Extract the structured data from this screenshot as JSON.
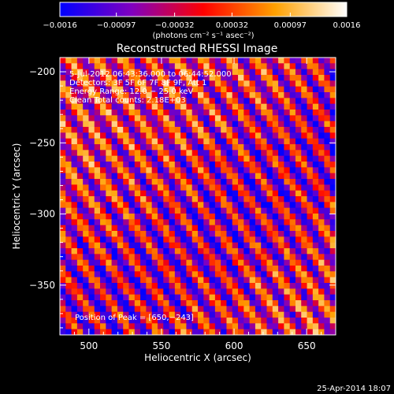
{
  "chart_data": {
    "type": "heatmap",
    "title": "Reconstructed RHESSI Image",
    "xlabel": "Heliocentric X (arcsec)",
    "ylabel": "Heliocentric Y (arcsec)",
    "xlim": [
      480,
      670
    ],
    "ylim": [
      -385,
      -190
    ],
    "x_ticks": [
      500,
      550,
      600,
      650
    ],
    "y_ticks": [
      -200,
      -250,
      -300,
      -350
    ],
    "x_tick_labels": [
      "500",
      "550",
      "600",
      "650"
    ],
    "y_tick_labels": [
      "−200",
      "−250",
      "−300",
      "−350"
    ],
    "colorbar": {
      "range": [
        -0.0016,
        0.0016
      ],
      "ticks": [
        -0.0016,
        -0.00097,
        -0.00032,
        0.00032,
        0.00097,
        0.0016
      ],
      "tick_labels": [
        "−0.0016",
        "−0.00097",
        "−0.00032",
        "0.00032",
        "0.00097",
        "0.0016"
      ],
      "units_label": "(photons cm⁻² s⁻¹ asec⁻²)",
      "colors": [
        "#0000ff",
        "#a000a0",
        "#ff0000",
        "#ffa000",
        "#ffffff"
      ]
    },
    "annotations": [
      "5-Jul-2012 06:43:36.000 to 06:44:52.000",
      "Detectors: 3F 5F 6F 7F 8F 9F, Att 1",
      "Energy Range: 12.0 − 25.0 keV",
      "Clean    Total counts: 2.18E+03"
    ],
    "peak_label": "Position of Peak = [650,−243]",
    "peak": [
      650,
      -243
    ],
    "grid_cells": [
      48,
      48
    ],
    "pattern": {
      "type": "diagonal stripes",
      "period_arcsec": 15,
      "angle_deg": 35,
      "amplitude": 0.0011,
      "blue_band_center": [
        600,
        -300
      ]
    }
  },
  "footer": {
    "date": "25-Apr-2014 18:07"
  }
}
